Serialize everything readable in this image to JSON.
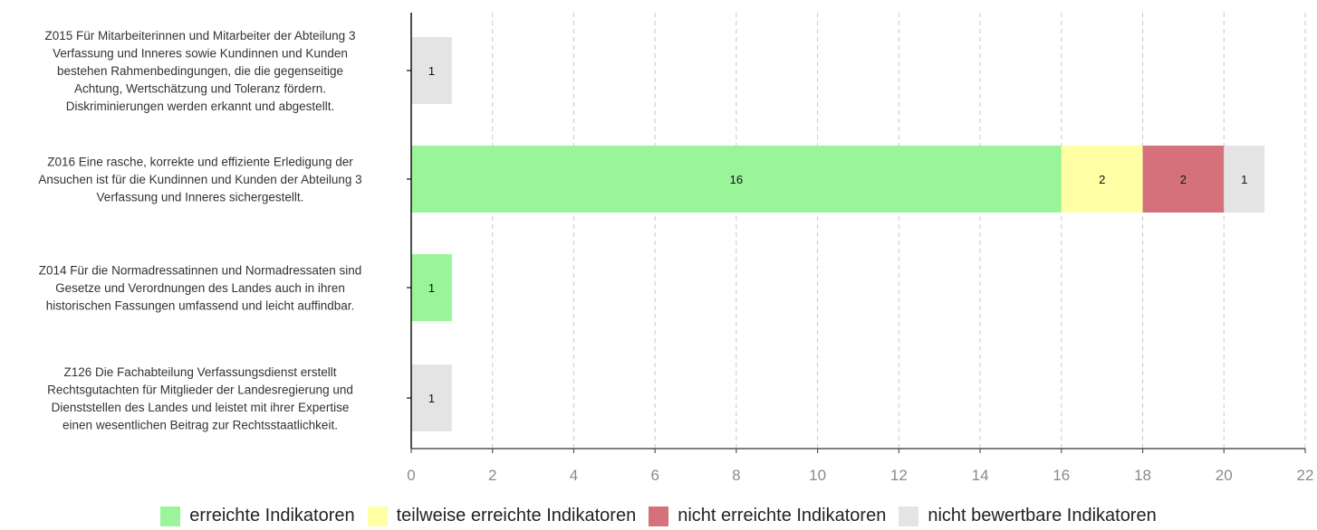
{
  "chart_data": {
    "type": "bar",
    "orientation": "horizontal",
    "stacked": true,
    "categories": [
      "Z015 Für Mitarbeiterinnen und Mitarbeiter der Abteilung 3\nVerfassung und Inneres sowie Kundinnen und Kunden\nbestehen Rahmenbedingungen, die die gegenseitige\nAchtung, Wertschätzung und Toleranz fördern.\nDiskriminierungen werden erkannt und abgestellt.",
      "Z016 Eine rasche, korrekte und effiziente Erledigung der\nAnsuchen ist für die Kundinnen und Kunden der Abteilung 3\nVerfassung und Inneres sichergestellt.",
      "Z014 Für die Normadressatinnen und Normadressaten sind\nGesetze und Verordnungen des Landes auch in ihren\nhistorischen Fassungen umfassend und leicht auffindbar.",
      "Z126 Die Fachabteilung Verfassungsdienst erstellt\nRechtsgutachten für Mitglieder der Landesregierung und\nDienststellen des Landes und leistet mit ihrer Expertise\neinen wesentlichen Beitrag zur Rechtsstaatlichkeit."
    ],
    "series": [
      {
        "name": "erreichte Indikatoren",
        "color": "#9af59a",
        "values": [
          0,
          16,
          1,
          0
        ]
      },
      {
        "name": "teilweise erreichte Indikatoren",
        "color": "#ffffa6",
        "values": [
          0,
          2,
          0,
          0
        ]
      },
      {
        "name": "nicht erreichte Indikatoren",
        "color": "#d5717a",
        "values": [
          0,
          2,
          0,
          0
        ]
      },
      {
        "name": "nicht bewertbare Indikatoren",
        "color": "#e4e4e4",
        "values": [
          1,
          1,
          0,
          1
        ]
      }
    ],
    "xlim": [
      0,
      22
    ],
    "xticks": [
      0,
      2,
      4,
      6,
      8,
      10,
      12,
      14,
      16,
      18,
      20,
      22
    ],
    "grid": "vertical dashed",
    "legend_position": "bottom",
    "show_value_labels": true
  }
}
